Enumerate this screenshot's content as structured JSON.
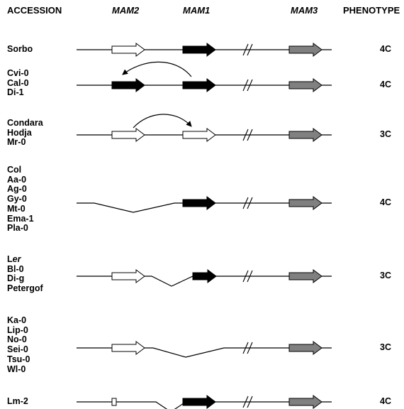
{
  "headers": {
    "accession": "ACCESSION",
    "mam2": "MAM2",
    "mam1": "MAM1",
    "mam3": "MAM3",
    "phenotype": "PHENOTYPE"
  },
  "colors": {
    "white_gene": "#ffffff",
    "black_gene": "#000000",
    "gray_gene": "#808080",
    "line": "#000000"
  },
  "rows": [
    {
      "accessions": [
        "Sorbo"
      ],
      "phenotype": "4C",
      "mam2": "white",
      "mam1": "black",
      "mam3": "gray",
      "deletion": "none",
      "arrow": "none"
    },
    {
      "accessions": [
        "Cvi-0",
        "Cal-0",
        "Di-1"
      ],
      "phenotype": "4C",
      "mam2": "black",
      "mam1": "black",
      "mam3": "gray",
      "deletion": "none",
      "arrow": "mam1-to-mam2"
    },
    {
      "accessions": [
        "Condara",
        "Hodja",
        "Mr-0"
      ],
      "phenotype": "3C",
      "mam2": "white",
      "mam1": "white",
      "mam3": "gray",
      "deletion": "none",
      "arrow": "mam2-to-mam1"
    },
    {
      "accessions": [
        "Col",
        "Aa-0",
        "Ag-0",
        "Gy-0",
        "Mt-0",
        "Ema-1",
        "Pla-0"
      ],
      "phenotype": "4C",
      "mam2": "absent",
      "mam1": "black",
      "mam3": "gray",
      "deletion": "mam2-region",
      "arrow": "none"
    },
    {
      "accessions": [
        "Ler",
        "Bl-0",
        "Di-g",
        "Petergof"
      ],
      "phenotype": "3C",
      "mam2": "white",
      "mam1": "black-short",
      "mam3": "gray",
      "deletion": "between-mam2-mam1",
      "arrow": "none"
    },
    {
      "accessions": [
        "Ka-0",
        "Lip-0",
        "No-0",
        "Sei-0",
        "Tsu-0",
        "Wl-0"
      ],
      "phenotype": "3C",
      "mam2": "white",
      "mam1": "absent",
      "mam3": "gray",
      "deletion": "mam1-region",
      "arrow": "none"
    },
    {
      "accessions": [
        "Lm-2"
      ],
      "phenotype": "4C",
      "mam2": "small-box",
      "mam1": "black",
      "mam3": "gray",
      "deletion": "between-mam2-mam1",
      "arrow": "none"
    }
  ]
}
